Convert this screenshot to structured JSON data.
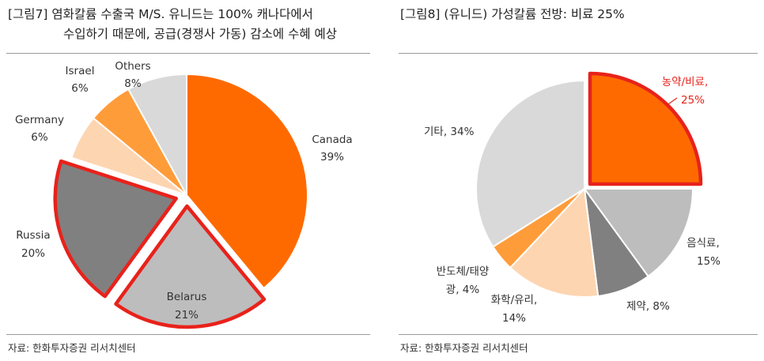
{
  "figures": [
    {
      "title_line1": "[그림7]   염화칼륨  수출국  M/S.  유니드는  100%  캐나다에서",
      "title_line2": "수입하기 때문에, 공급(경쟁사 가동) 감소에 수혜 예상",
      "source": "자료: 한화투자증권 리서치센터"
    },
    {
      "title_line1": "[그림8]    (유니드) 가성칼륨 전방: 비료 25%",
      "title_line2": "",
      "source": "자료: 한화투자증권 리서치센터"
    }
  ],
  "colors": {
    "orange": "#ff6a00",
    "light_orange": "#ff9c3a",
    "peach": "#fdd5b1",
    "light_gray": "#d9d9d9",
    "mid_gray": "#bdbdbd",
    "dark_gray": "#808080",
    "highlight_red": "#e8221b"
  },
  "chart_data": [
    {
      "type": "pie",
      "title": "",
      "unit": "%",
      "slices": [
        {
          "name": "Canada",
          "value": 39,
          "label": "39%",
          "color": "#ff6a00"
        },
        {
          "name": "Belarus",
          "value": 21,
          "label": "21%",
          "color": "#bdbdbd",
          "highlighted": true
        },
        {
          "name": "Russia",
          "value": 20,
          "label": "20%",
          "color": "#808080",
          "highlighted": true
        },
        {
          "name": "Germany",
          "value": 6,
          "label": "6%",
          "color": "#fdd5b1"
        },
        {
          "name": "Israel",
          "value": 6,
          "label": "6%",
          "color": "#ff9c3a"
        },
        {
          "name": "Others",
          "value": 8,
          "label": "8%",
          "color": "#d9d9d9"
        }
      ]
    },
    {
      "type": "pie",
      "title": "",
      "unit": "%",
      "slices": [
        {
          "name": "농약/비료,",
          "value": 25,
          "label": "25%",
          "color": "#ff6a00",
          "highlighted": true,
          "exploded": true
        },
        {
          "name": "음식료,",
          "value": 15,
          "label": "15%",
          "color": "#bdbdbd"
        },
        {
          "name": "제약,",
          "value": 8,
          "label": "8%",
          "color": "#808080"
        },
        {
          "name": "화학/유리,",
          "value": 14,
          "label": "14%",
          "color": "#fdd5b1"
        },
        {
          "name": "반도체/태양",
          "name2": "광,",
          "value": 4,
          "label": "4%",
          "color": "#ff9c3a"
        },
        {
          "name": "기타,",
          "value": 34,
          "label": "34%",
          "color": "#d9d9d9"
        }
      ]
    }
  ]
}
